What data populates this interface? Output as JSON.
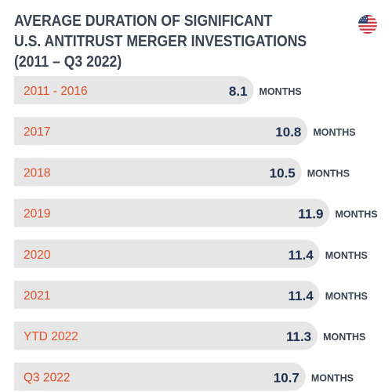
{
  "title_lines": [
    "AVERAGE DURATION OF SIGNIFICANT",
    "U.S. ANTITRUST MERGER INVESTIGATIONS",
    "(2011 – Q3 2022)"
  ],
  "flag_icon": "us-flag-icon",
  "colors": {
    "bar": "#e6e6e6",
    "category_text": "#e0512a",
    "value_text": "#1f3150",
    "title_text": "#3b4452"
  },
  "chart_data": {
    "type": "bar",
    "orientation": "horizontal",
    "title": "AVERAGE DURATION OF SIGNIFICANT U.S. ANTITRUST MERGER INVESTIGATIONS (2011 – Q3 2022)",
    "categories": [
      "2011 - 2016",
      "2017",
      "2018",
      "2019",
      "2020",
      "2021",
      "YTD 2022",
      "Q3 2022"
    ],
    "values": [
      8.1,
      10.8,
      10.5,
      11.9,
      11.4,
      11.4,
      11.3,
      10.7
    ],
    "value_labels": [
      "8.1",
      "10.8",
      "10.5",
      "11.9",
      "11.4",
      "11.4",
      "11.3",
      "10.7"
    ],
    "unit_label": "MONTHS",
    "xlim": [
      0,
      12.5
    ],
    "grid": false,
    "legend": "none"
  }
}
